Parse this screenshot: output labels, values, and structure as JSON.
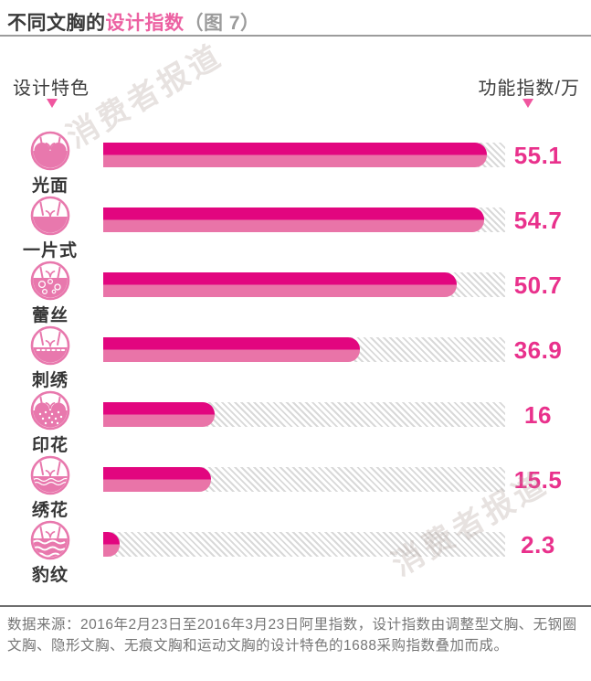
{
  "header": {
    "title_prefix": "不同文胸的",
    "title_highlight": "设计指数",
    "title_suffix": "（图 7）"
  },
  "columns": {
    "left_label": "设计特色",
    "right_label": "功能指数/万"
  },
  "watermark": {
    "text": "消费者报道"
  },
  "chart_data": {
    "type": "bar",
    "orientation": "horizontal",
    "title": "不同文胸的设计指数（图 7）",
    "category_axis_label": "设计特色",
    "value_axis_label": "功能指数/万",
    "categories": [
      "光面",
      "一片式",
      "蕾丝",
      "刺绣",
      "印花",
      "绣花",
      "豹纹"
    ],
    "values": [
      55.1,
      54.7,
      50.7,
      36.9,
      16,
      15.5,
      2.3
    ],
    "value_labels": [
      "55.1",
      "54.7",
      "50.7",
      "36.9",
      "16",
      "15.5",
      "2.3"
    ],
    "icons": [
      "smooth-bra",
      "one-piece-bra",
      "lace-bra",
      "embroidery-bra",
      "print-bra",
      "flower-embroidery-bra",
      "leopard-bra"
    ],
    "xlim": [
      0,
      57.7
    ],
    "grid": false,
    "legend": false,
    "colors": {
      "bar_top": "#e2067f",
      "bar_bottom": "#e974a8",
      "value_text": "#e9318c",
      "track_stripe": "#d9d9d9",
      "icon_pink": "#e878ad",
      "title_pink": "#ec61a2",
      "arrow_pink": "#f0569f"
    }
  },
  "footer": {
    "source_text": "数据来源：2016年2月23日至2016年3月23日阿里指数，设计指数由调整型文胸、无钢圈文胸、隐形文胸、无痕文胸和运动文胸的设计特色的1688采购指数叠加而成。"
  }
}
